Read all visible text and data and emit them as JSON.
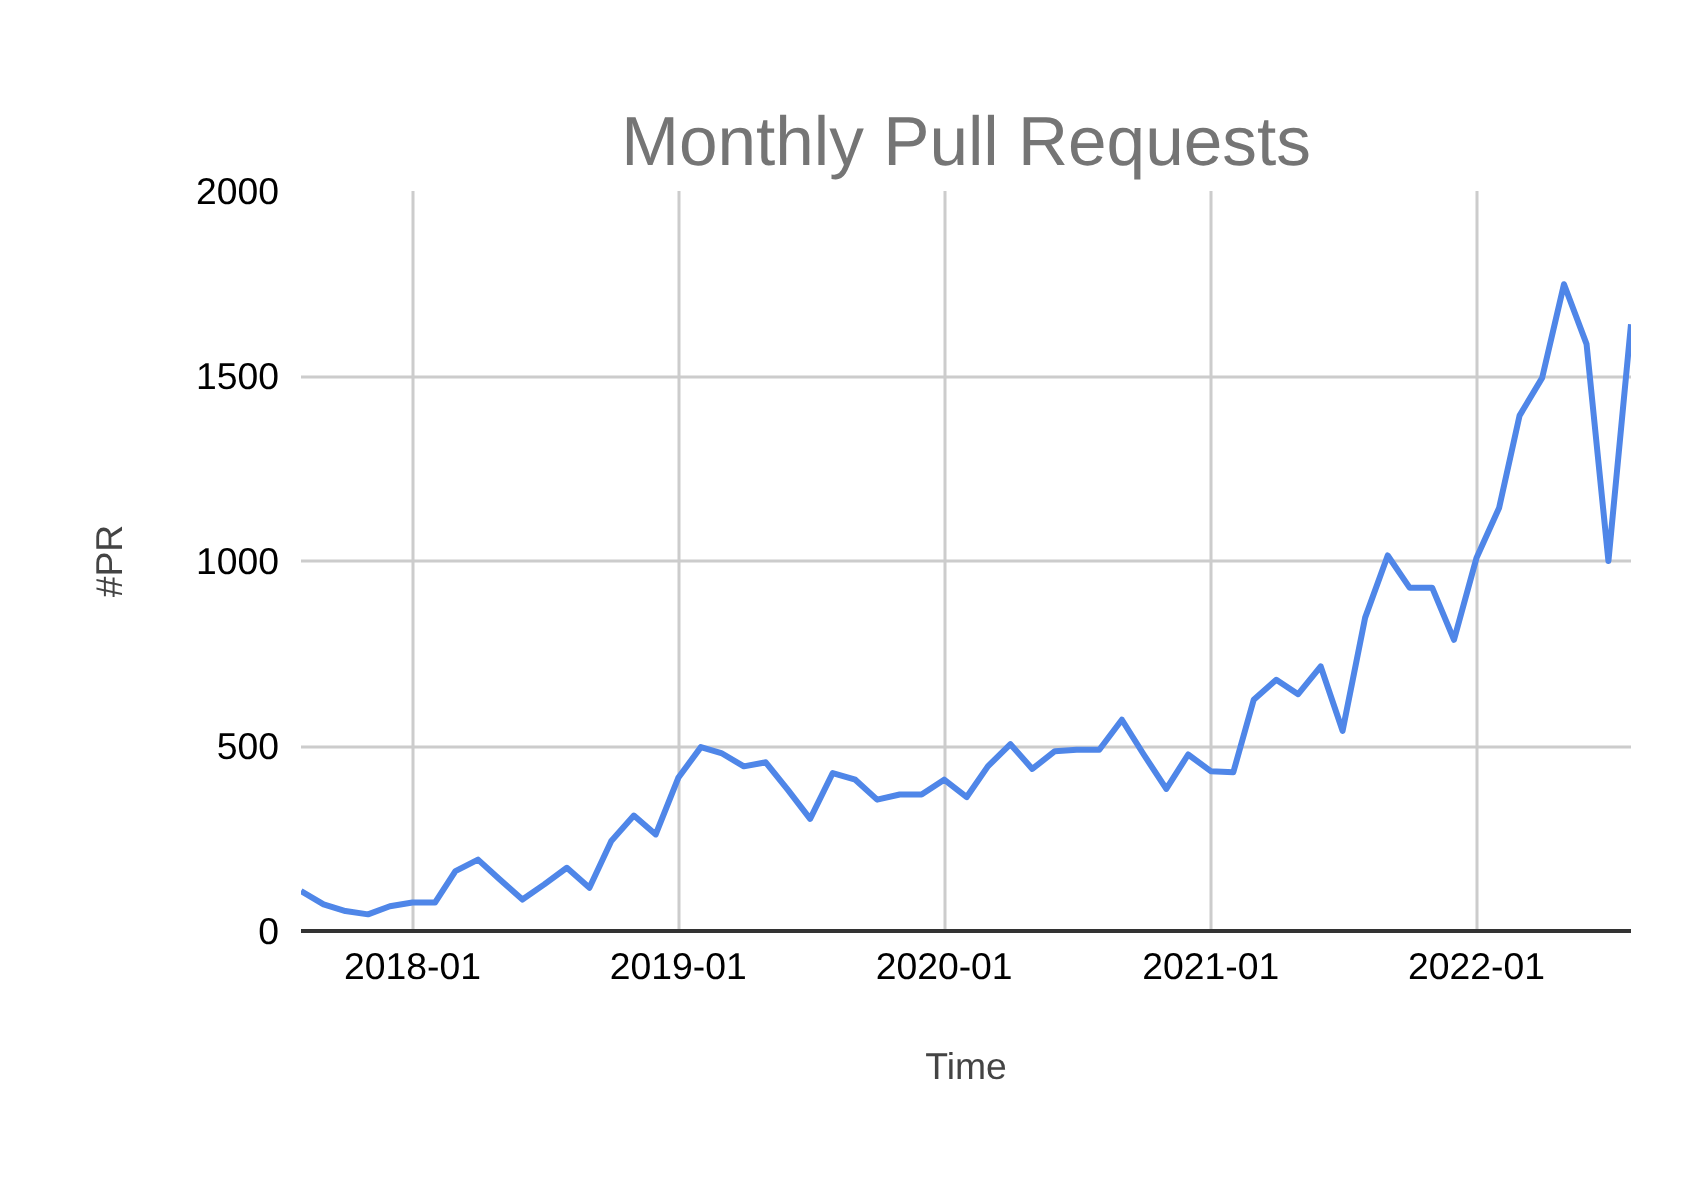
{
  "chart_data": {
    "type": "line",
    "title": "Monthly Pull Requests",
    "xlabel": "Time",
    "ylabel": "#PR",
    "x": [
      "2017-08",
      "2017-09",
      "2017-10",
      "2017-11",
      "2017-12",
      "2018-01",
      "2018-02",
      "2018-03",
      "2018-04",
      "2018-05",
      "2018-06",
      "2018-07",
      "2018-08",
      "2018-09",
      "2018-10",
      "2018-11",
      "2018-12",
      "2019-01",
      "2019-02",
      "2019-03",
      "2019-04",
      "2019-05",
      "2019-06",
      "2019-07",
      "2019-08",
      "2019-09",
      "2019-10",
      "2019-11",
      "2019-12",
      "2020-01",
      "2020-02",
      "2020-03",
      "2020-04",
      "2020-05",
      "2020-06",
      "2020-07",
      "2020-08",
      "2020-09",
      "2020-10",
      "2020-11",
      "2020-12",
      "2021-01",
      "2021-02",
      "2021-03",
      "2021-04",
      "2021-05",
      "2021-06",
      "2021-07",
      "2021-08",
      "2021-09",
      "2021-10",
      "2021-11",
      "2021-12",
      "2022-01",
      "2022-02",
      "2022-03",
      "2022-04",
      "2022-05",
      "2022-06",
      "2022-07",
      "2022-08"
    ],
    "series": [
      {
        "color": "#4f86e8",
        "values": [
          108,
          72,
          54,
          45,
          67,
          77,
          77,
          162,
          193,
          139,
          85,
          126,
          171,
          117,
          243,
          312,
          261,
          414,
          497,
          481,
          445,
          456,
          380,
          303,
          427,
          409,
          355,
          369,
          369,
          409,
          362,
          445,
          505,
          438,
          486,
          490,
          490,
          571,
          477,
          384,
          477,
          432,
          429,
          625,
          679,
          640,
          715,
          541,
          847,
          1015,
          928,
          928,
          787,
          1009,
          1144,
          1393,
          1495,
          1748,
          1586,
          1000,
          1640
        ]
      }
    ],
    "xlim": [
      "2017-08",
      "2022-08"
    ],
    "xticks": [
      "2018-01",
      "2019-01",
      "2020-01",
      "2021-01",
      "2022-01"
    ],
    "ylim": [
      0,
      2000
    ],
    "yticks": [
      0,
      500,
      1000,
      1500,
      2000
    ],
    "grid": true,
    "line_style": "solid",
    "marker": "none"
  }
}
